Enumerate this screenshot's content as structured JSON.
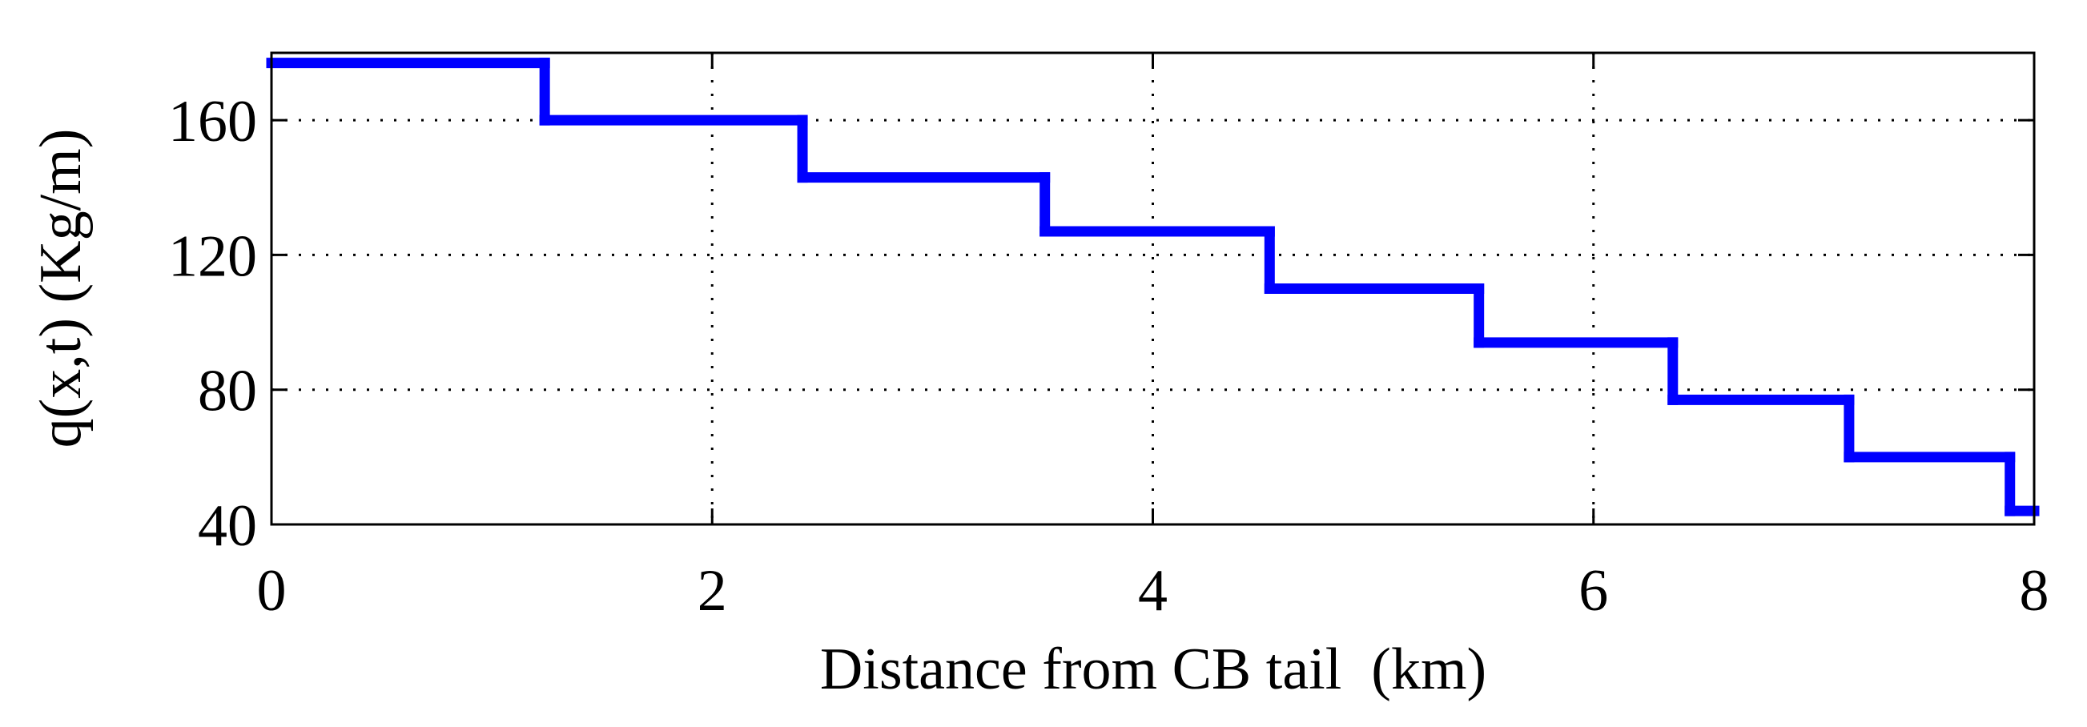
{
  "chart_data": {
    "type": "line",
    "step": "post",
    "x_label": "Distance from CB tail  (km)",
    "y_label": "q(x,t) (Kg/m)",
    "x": [
      0,
      1.24,
      2.41,
      3.51,
      4.53,
      5.48,
      6.36,
      7.16,
      7.89
    ],
    "series": [
      {
        "color": "#0000ff",
        "values": [
          177,
          160,
          143,
          127,
          110,
          94,
          77,
          60,
          44
        ]
      }
    ],
    "xlim": [
      0,
      8
    ],
    "xticks": [
      0,
      2,
      4,
      6,
      8
    ],
    "ylim": [
      40,
      180
    ],
    "yticks": [
      40,
      80,
      120,
      160
    ],
    "grid": true
  }
}
